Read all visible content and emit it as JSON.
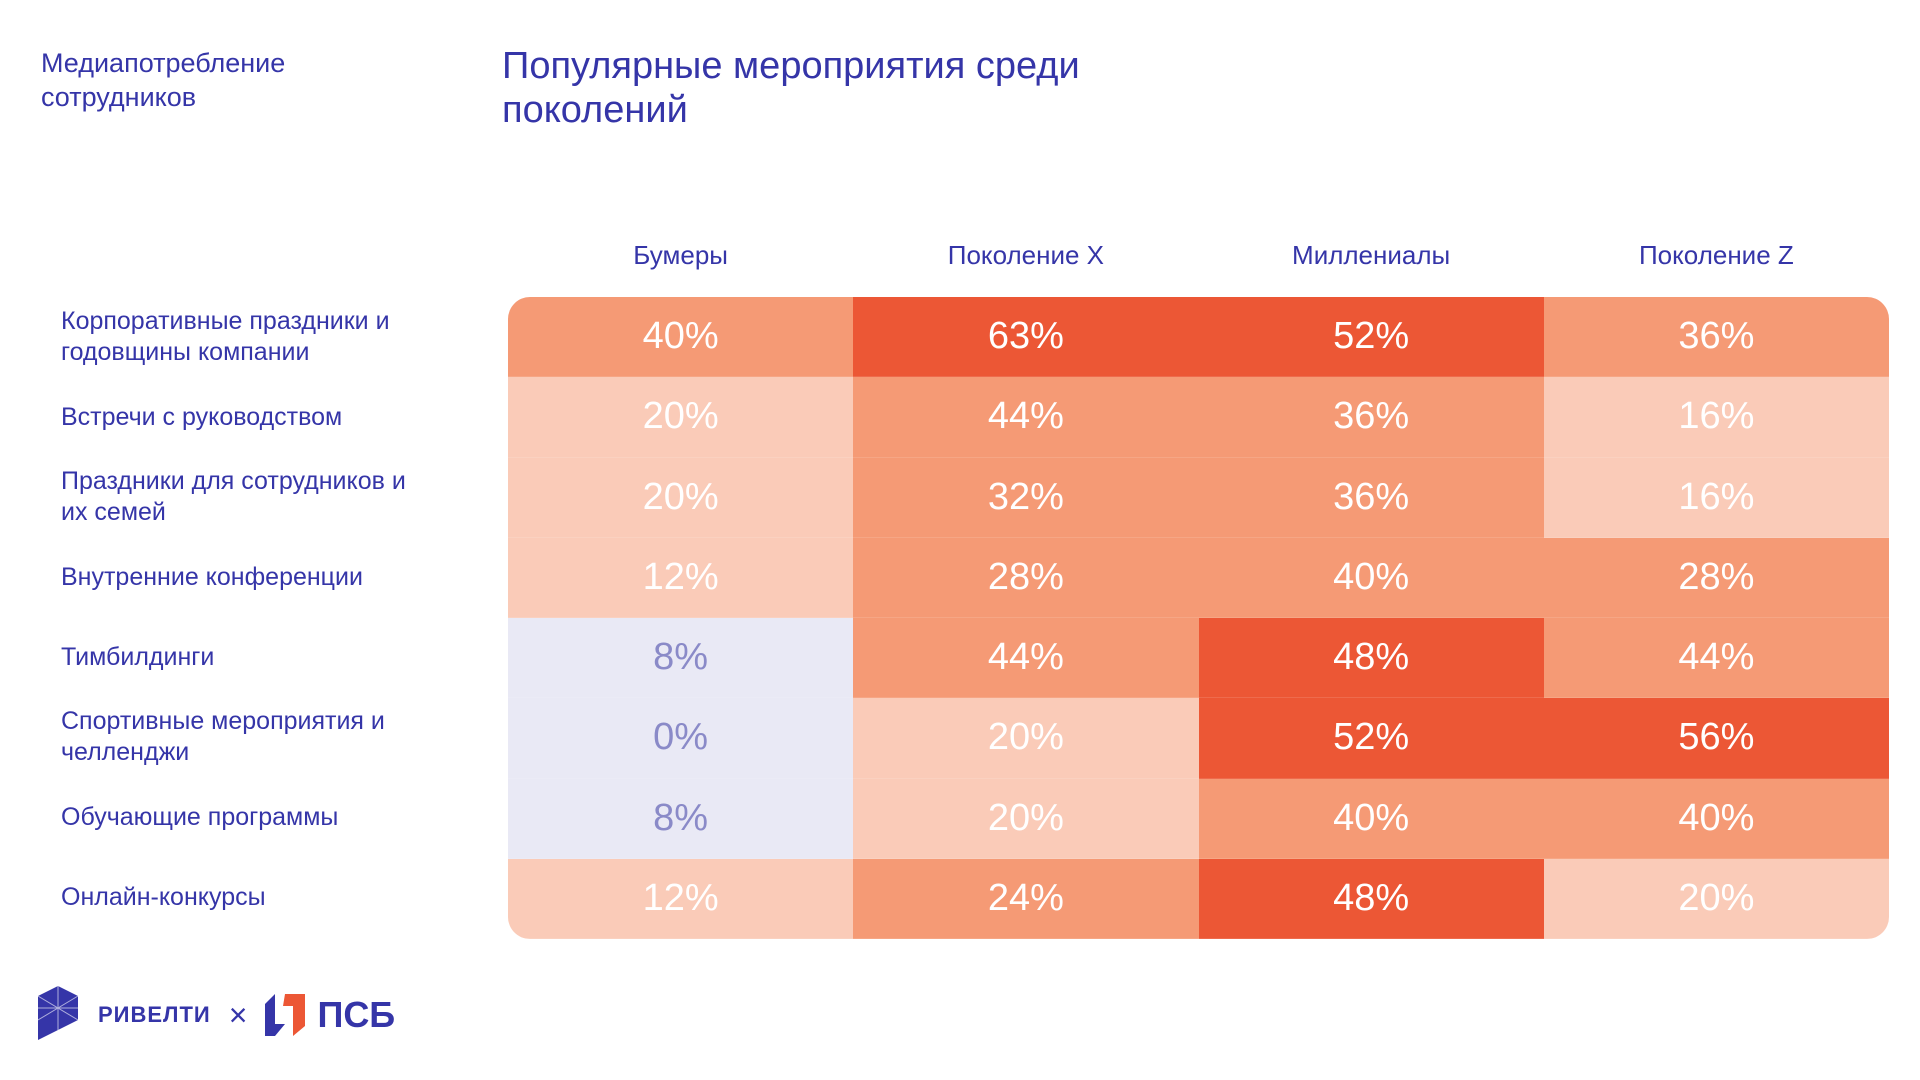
{
  "section_title": "Медиапотребление сотрудников",
  "title": "Популярные мероприятия среди поколений",
  "colors": {
    "high": "#EC5735",
    "mid": "#F59A75",
    "low": "#FACBB8",
    "none": "#E9E9F5",
    "none_text": "#8A8AC8"
  },
  "chart_data": {
    "type": "heatmap",
    "title": "Популярные мероприятия среди поколений",
    "columns": [
      "Бумеры",
      "Поколение X",
      "Миллениалы",
      "Поколение Z"
    ],
    "rows": [
      "Корпоративные праздники и годовщины компании",
      "Встречи с руководством",
      "Праздники для сотрудников и их семей",
      "Внутренние конференции",
      "Тимбилдинги",
      "Спортивные мероприятия и челленджи",
      "Обучающие программы",
      "Онлайн-конкурсы"
    ],
    "values": [
      [
        40,
        63,
        52,
        36
      ],
      [
        20,
        44,
        36,
        16
      ],
      [
        20,
        32,
        36,
        16
      ],
      [
        12,
        28,
        40,
        28
      ],
      [
        8,
        44,
        48,
        44
      ],
      [
        0,
        20,
        52,
        56
      ],
      [
        8,
        20,
        40,
        40
      ],
      [
        12,
        24,
        48,
        20
      ]
    ],
    "unit": "%"
  },
  "logos": {
    "rivelti": "РИВЕЛТИ",
    "separator": "×",
    "psb": "ПСБ"
  }
}
